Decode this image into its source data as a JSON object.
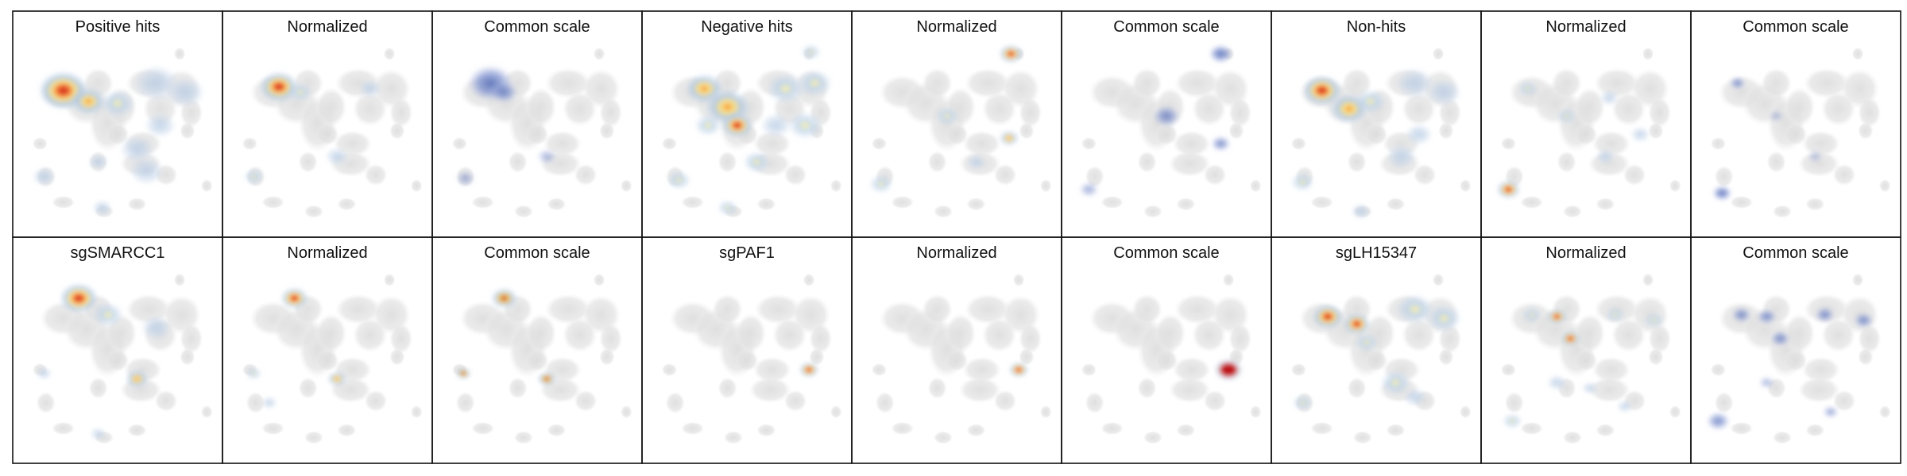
{
  "figure": {
    "rows": [
      {
        "panels": [
          {
            "title": "Positive hits",
            "mode": "raw",
            "spots": [
              [
                0.22,
                0.26,
                0.13,
                1.0
              ],
              [
                0.35,
                0.32,
                0.09,
                0.8
              ],
              [
                0.5,
                0.33,
                0.09,
                0.45
              ],
              [
                0.7,
                0.22,
                0.12,
                0.35
              ],
              [
                0.85,
                0.27,
                0.1,
                0.35
              ],
              [
                0.72,
                0.45,
                0.08,
                0.3
              ],
              [
                0.6,
                0.58,
                0.09,
                0.3
              ],
              [
                0.65,
                0.7,
                0.09,
                0.3
              ],
              [
                0.12,
                0.73,
                0.06,
                0.35
              ],
              [
                0.4,
                0.65,
                0.05,
                0.25
              ],
              [
                0.42,
                0.9,
                0.05,
                0.35
              ]
            ]
          },
          {
            "title": "Normalized",
            "mode": "norm",
            "spots": [
              [
                0.25,
                0.24,
                0.1,
                1.0
              ],
              [
                0.36,
                0.27,
                0.06,
                0.6
              ],
              [
                0.55,
                0.62,
                0.06,
                0.4
              ],
              [
                0.12,
                0.73,
                0.05,
                0.5
              ],
              [
                0.72,
                0.25,
                0.06,
                0.25
              ]
            ]
          },
          {
            "title": "Common scale",
            "mode": "common",
            "spots": [
              [
                0.26,
                0.22,
                0.12,
                0.85
              ],
              [
                0.33,
                0.27,
                0.07,
                0.7
              ],
              [
                0.55,
                0.62,
                0.05,
                0.45
              ],
              [
                0.13,
                0.74,
                0.05,
                0.45
              ]
            ]
          },
          {
            "title": "Negative hits",
            "mode": "raw",
            "spots": [
              [
                0.28,
                0.25,
                0.1,
                0.7
              ],
              [
                0.4,
                0.35,
                0.12,
                0.85
              ],
              [
                0.45,
                0.45,
                0.08,
                1.0
              ],
              [
                0.3,
                0.45,
                0.07,
                0.6
              ],
              [
                0.7,
                0.25,
                0.1,
                0.6
              ],
              [
                0.85,
                0.22,
                0.09,
                0.55
              ],
              [
                0.8,
                0.45,
                0.09,
                0.55
              ],
              [
                0.65,
                0.45,
                0.08,
                0.4
              ],
              [
                0.15,
                0.75,
                0.06,
                0.6
              ],
              [
                0.55,
                0.65,
                0.07,
                0.45
              ],
              [
                0.83,
                0.05,
                0.05,
                0.6
              ],
              [
                0.4,
                0.9,
                0.05,
                0.45
              ]
            ]
          },
          {
            "title": "Normalized",
            "mode": "norm",
            "spots": [
              [
                0.78,
                0.06,
                0.06,
                1.0
              ],
              [
                0.45,
                0.4,
                0.06,
                0.6
              ],
              [
                0.77,
                0.52,
                0.05,
                0.8
              ],
              [
                0.11,
                0.77,
                0.06,
                0.6
              ],
              [
                0.6,
                0.65,
                0.05,
                0.4
              ]
            ]
          },
          {
            "title": "Common scale",
            "mode": "common",
            "spots": [
              [
                0.78,
                0.06,
                0.06,
                0.85
              ],
              [
                0.5,
                0.4,
                0.07,
                0.7
              ],
              [
                0.78,
                0.55,
                0.05,
                0.7
              ],
              [
                0.1,
                0.8,
                0.05,
                0.5
              ]
            ]
          },
          {
            "title": "Non-hits",
            "mode": "raw",
            "spots": [
              [
                0.22,
                0.26,
                0.1,
                0.95
              ],
              [
                0.36,
                0.36,
                0.1,
                0.85
              ],
              [
                0.47,
                0.32,
                0.08,
                0.5
              ],
              [
                0.7,
                0.22,
                0.1,
                0.4
              ],
              [
                0.85,
                0.27,
                0.09,
                0.4
              ],
              [
                0.72,
                0.5,
                0.07,
                0.35
              ],
              [
                0.63,
                0.62,
                0.08,
                0.35
              ],
              [
                0.12,
                0.76,
                0.06,
                0.5
              ],
              [
                0.42,
                0.92,
                0.05,
                0.35
              ]
            ]
          },
          {
            "title": "Normalized",
            "mode": "norm",
            "spots": [
              [
                0.1,
                0.8,
                0.06,
                1.0
              ],
              [
                0.2,
                0.25,
                0.05,
                0.5
              ],
              [
                0.4,
                0.4,
                0.05,
                0.45
              ],
              [
                0.62,
                0.3,
                0.05,
                0.35
              ],
              [
                0.78,
                0.5,
                0.05,
                0.35
              ],
              [
                0.6,
                0.62,
                0.05,
                0.35
              ]
            ]
          },
          {
            "title": "Common scale",
            "mode": "common",
            "spots": [
              [
                0.12,
                0.82,
                0.05,
                0.85
              ],
              [
                0.2,
                0.22,
                0.04,
                0.7
              ],
              [
                0.4,
                0.4,
                0.04,
                0.35
              ],
              [
                0.6,
                0.62,
                0.04,
                0.35
              ]
            ]
          }
        ]
      },
      {
        "panels": [
          {
            "title": "sgSMARCC1",
            "mode": "raw",
            "spots": [
              [
                0.3,
                0.16,
                0.1,
                1.0
              ],
              [
                0.45,
                0.25,
                0.08,
                0.45
              ],
              [
                0.7,
                0.32,
                0.08,
                0.35
              ],
              [
                0.6,
                0.6,
                0.06,
                0.7
              ],
              [
                0.12,
                0.57,
                0.04,
                0.35
              ],
              [
                0.4,
                0.9,
                0.04,
                0.35
              ]
            ]
          },
          {
            "title": "Normalized",
            "mode": "norm",
            "spots": [
              [
                0.33,
                0.16,
                0.07,
                1.0
              ],
              [
                0.55,
                0.6,
                0.05,
                0.7
              ],
              [
                0.12,
                0.57,
                0.04,
                0.45
              ],
              [
                0.2,
                0.73,
                0.04,
                0.3
              ]
            ]
          },
          {
            "title": "Common scale",
            "mode": "common-warm",
            "spots": [
              [
                0.33,
                0.16,
                0.07,
                1.0
              ],
              [
                0.55,
                0.6,
                0.05,
                0.7
              ],
              [
                0.12,
                0.57,
                0.04,
                0.45
              ]
            ]
          },
          {
            "title": "sgPAF1",
            "mode": "norm",
            "spots": [
              [
                0.82,
                0.55,
                0.05,
                1.0
              ]
            ]
          },
          {
            "title": "Normalized",
            "mode": "norm",
            "spots": [
              [
                0.82,
                0.55,
                0.05,
                1.0
              ]
            ]
          },
          {
            "title": "Common scale",
            "mode": "common-dark",
            "spots": [
              [
                0.82,
                0.55,
                0.07,
                1.0
              ]
            ]
          },
          {
            "title": "sgLH15347",
            "mode": "raw",
            "spots": [
              [
                0.25,
                0.26,
                0.08,
                0.9
              ],
              [
                0.4,
                0.3,
                0.07,
                0.95
              ],
              [
                0.45,
                0.4,
                0.06,
                0.6
              ],
              [
                0.7,
                0.22,
                0.1,
                0.45
              ],
              [
                0.85,
                0.27,
                0.09,
                0.5
              ],
              [
                0.6,
                0.62,
                0.08,
                0.5
              ],
              [
                0.12,
                0.73,
                0.05,
                0.5
              ],
              [
                0.7,
                0.7,
                0.06,
                0.4
              ]
            ]
          },
          {
            "title": "Normalized",
            "mode": "norm",
            "spots": [
              [
                0.22,
                0.25,
                0.05,
                0.6
              ],
              [
                0.35,
                0.26,
                0.05,
                0.9
              ],
              [
                0.42,
                0.38,
                0.05,
                0.9
              ],
              [
                0.65,
                0.25,
                0.05,
                0.55
              ],
              [
                0.85,
                0.28,
                0.05,
                0.55
              ],
              [
                0.12,
                0.83,
                0.05,
                0.6
              ],
              [
                0.35,
                0.62,
                0.05,
                0.35
              ],
              [
                0.52,
                0.65,
                0.04,
                0.35
              ],
              [
                0.7,
                0.75,
                0.04,
                0.35
              ]
            ]
          },
          {
            "title": "Common scale",
            "mode": "common",
            "spots": [
              [
                0.22,
                0.25,
                0.05,
                0.7
              ],
              [
                0.35,
                0.26,
                0.05,
                0.7
              ],
              [
                0.42,
                0.38,
                0.05,
                0.7
              ],
              [
                0.65,
                0.25,
                0.05,
                0.7
              ],
              [
                0.85,
                0.28,
                0.05,
                0.7
              ],
              [
                0.1,
                0.83,
                0.06,
                0.7
              ],
              [
                0.35,
                0.62,
                0.04,
                0.45
              ],
              [
                0.68,
                0.78,
                0.04,
                0.55
              ]
            ]
          }
        ]
      }
    ]
  }
}
